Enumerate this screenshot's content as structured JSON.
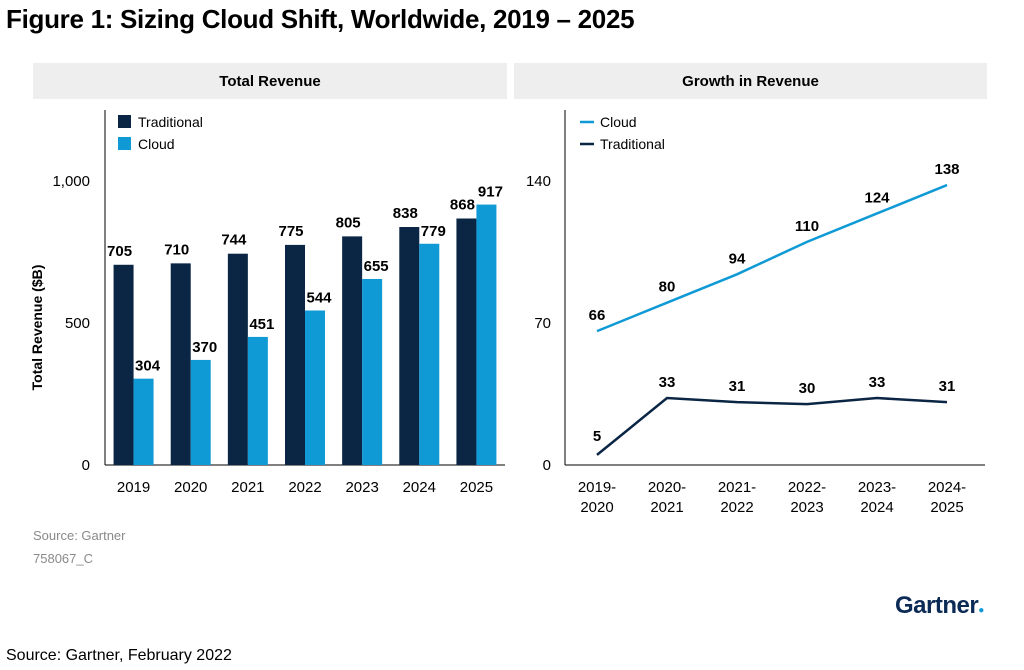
{
  "figure_title": "Figure 1: Sizing Cloud Shift, Worldwide, 2019 – 2025",
  "colors": {
    "traditional": "#0b2545",
    "cloud": "#0f9ad6",
    "header_bg": "#eeeeee"
  },
  "source_note": "Source: Gartner",
  "figure_id": "758067_C",
  "bottom_source": "Source: Gartner, February 2022",
  "logo_text": "Gartner",
  "chart_data": [
    {
      "type": "bar",
      "title": "Total Revenue",
      "ylabel": "Total Revenue ($B)",
      "xlabel": "",
      "categories": [
        "2019",
        "2020",
        "2021",
        "2022",
        "2023",
        "2024",
        "2025"
      ],
      "series": [
        {
          "name": "Traditional",
          "values": [
            705,
            710,
            744,
            775,
            805,
            838,
            868
          ]
        },
        {
          "name": "Cloud",
          "values": [
            304,
            370,
            451,
            544,
            655,
            779,
            917
          ]
        }
      ],
      "ylim": [
        0,
        1250
      ],
      "yticks": [
        0,
        500,
        1000
      ],
      "ytick_labels": [
        "0",
        "500",
        "1,000"
      ],
      "legend": "top-left",
      "grid": false
    },
    {
      "type": "line",
      "title": "Growth in Revenue",
      "ylabel": "",
      "xlabel": "",
      "categories": [
        [
          "2019-",
          "2020"
        ],
        [
          "2020-",
          "2021"
        ],
        [
          "2021-",
          "2022"
        ],
        [
          "2022-",
          "2023"
        ],
        [
          "2023-",
          "2024"
        ],
        [
          "2024-",
          "2025"
        ]
      ],
      "series": [
        {
          "name": "Cloud",
          "values": [
            66,
            80,
            94,
            110,
            124,
            138
          ]
        },
        {
          "name": "Traditional",
          "values": [
            5,
            33,
            31,
            30,
            33,
            31
          ]
        }
      ],
      "ylim": [
        0,
        175
      ],
      "yticks": [
        0,
        70,
        140
      ],
      "ytick_labels": [
        "0",
        "70",
        "140"
      ],
      "legend": "top-left",
      "grid": false
    }
  ]
}
